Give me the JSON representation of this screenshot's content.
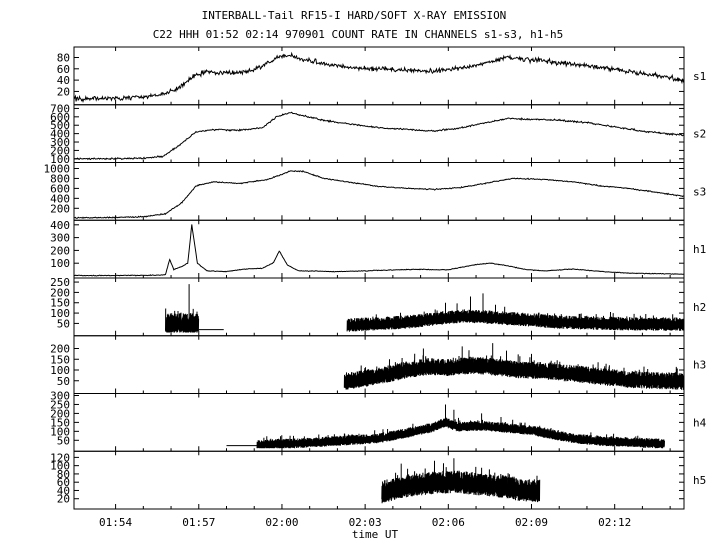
{
  "header": {
    "title": "INTERBALL-Tail RF15-I HARD/SOFT X-RAY EMISSION",
    "subtitle": "C22 HHH 01:52 02:14 970901  COUNT RATE IN CHANNELS s1-s3, h1-h5"
  },
  "chart_data": {
    "type": "line",
    "xlabel": "time UT",
    "xlim_minutes": [
      112.5,
      134.5
    ],
    "x_ticks": [
      {
        "label": "01:54",
        "min": 114
      },
      {
        "label": "01:57",
        "min": 117
      },
      {
        "label": "02:00",
        "min": 120
      },
      {
        "label": "02:03",
        "min": 123
      },
      {
        "label": "02:06",
        "min": 126
      },
      {
        "label": "02:09",
        "min": 129
      },
      {
        "label": "02:12",
        "min": 132
      }
    ],
    "panels": [
      {
        "id": "s1",
        "name": "s1",
        "ylim": [
          0,
          95
        ],
        "yticks": [
          "20",
          "40",
          "60",
          "80"
        ],
        "noise": 6,
        "points": [
          [
            112.5,
            7
          ],
          [
            114,
            8
          ],
          [
            115,
            10
          ],
          [
            115.7,
            14
          ],
          [
            116.3,
            28
          ],
          [
            116.9,
            50
          ],
          [
            117.4,
            55
          ],
          [
            118,
            52
          ],
          [
            119,
            57
          ],
          [
            119.8,
            78
          ],
          [
            120.3,
            85
          ],
          [
            120.8,
            75
          ],
          [
            121.5,
            70
          ],
          [
            122.5,
            62
          ],
          [
            123.5,
            60
          ],
          [
            124.5,
            58
          ],
          [
            125.5,
            55
          ],
          [
            126.5,
            62
          ],
          [
            127.5,
            72
          ],
          [
            128.1,
            80
          ],
          [
            128.6,
            77
          ],
          [
            129.5,
            74
          ],
          [
            130.5,
            68
          ],
          [
            131.5,
            62
          ],
          [
            132.5,
            55
          ],
          [
            133.5,
            48
          ],
          [
            134.5,
            40
          ]
        ]
      },
      {
        "id": "s2",
        "name": "s2",
        "ylim": [
          80,
          720
        ],
        "yticks": [
          "100",
          "200",
          "300",
          "400",
          "500",
          "600",
          "700"
        ],
        "noise": 14,
        "points": [
          [
            112.5,
            100
          ],
          [
            114,
            102
          ],
          [
            115,
            108
          ],
          [
            115.7,
            130
          ],
          [
            116.3,
            260
          ],
          [
            116.9,
            420
          ],
          [
            117.5,
            450
          ],
          [
            118.5,
            440
          ],
          [
            119.3,
            470
          ],
          [
            119.8,
            600
          ],
          [
            120.3,
            650
          ],
          [
            120.8,
            610
          ],
          [
            121.5,
            560
          ],
          [
            122.5,
            510
          ],
          [
            123.5,
            470
          ],
          [
            124.5,
            450
          ],
          [
            125.5,
            430
          ],
          [
            126.5,
            470
          ],
          [
            127.5,
            540
          ],
          [
            128.2,
            580
          ],
          [
            129,
            570
          ],
          [
            130,
            560
          ],
          [
            131,
            530
          ],
          [
            132,
            480
          ],
          [
            133,
            430
          ],
          [
            134.5,
            380
          ]
        ]
      },
      {
        "id": "s3",
        "name": "s3",
        "ylim": [
          0,
          1080
        ],
        "yticks": [
          "200",
          "400",
          "600",
          "800",
          "1000"
        ],
        "noise": 15,
        "points": [
          [
            112.5,
            10
          ],
          [
            114,
            15
          ],
          [
            115,
            30
          ],
          [
            115.8,
            90
          ],
          [
            116.4,
            320
          ],
          [
            116.9,
            650
          ],
          [
            117.5,
            730
          ],
          [
            118.5,
            700
          ],
          [
            119.5,
            780
          ],
          [
            120.3,
            950
          ],
          [
            120.8,
            940
          ],
          [
            121.5,
            800
          ],
          [
            122.5,
            720
          ],
          [
            123.5,
            640
          ],
          [
            124.5,
            600
          ],
          [
            125.5,
            580
          ],
          [
            126.5,
            620
          ],
          [
            127.5,
            720
          ],
          [
            128.3,
            800
          ],
          [
            129.5,
            780
          ],
          [
            130.5,
            730
          ],
          [
            131.5,
            650
          ],
          [
            132.5,
            600
          ],
          [
            133.5,
            520
          ],
          [
            134.5,
            440
          ]
        ]
      },
      {
        "id": "h1",
        "name": "h1",
        "ylim": [
          0,
          420
        ],
        "yticks": [
          "100",
          "200",
          "300",
          "400"
        ],
        "noise": 4,
        "points": [
          [
            112.5,
            3
          ],
          [
            115.5,
            6
          ],
          [
            115.8,
            10
          ],
          [
            115.95,
            130
          ],
          [
            116.1,
            50
          ],
          [
            116.4,
            75
          ],
          [
            116.6,
            100
          ],
          [
            116.75,
            400
          ],
          [
            116.95,
            100
          ],
          [
            117.3,
            40
          ],
          [
            118,
            35
          ],
          [
            118.7,
            55
          ],
          [
            119.3,
            60
          ],
          [
            119.7,
            105
          ],
          [
            119.9,
            195
          ],
          [
            120.2,
            85
          ],
          [
            120.6,
            40
          ],
          [
            122,
            35
          ],
          [
            123,
            40
          ],
          [
            124,
            48
          ],
          [
            125,
            52
          ],
          [
            126,
            48
          ],
          [
            127,
            90
          ],
          [
            127.5,
            100
          ],
          [
            128,
            85
          ],
          [
            128.8,
            50
          ],
          [
            129.5,
            40
          ],
          [
            130.5,
            55
          ],
          [
            131.5,
            35
          ],
          [
            132.5,
            22
          ],
          [
            133.5,
            18
          ],
          [
            134.5,
            15
          ]
        ]
      },
      {
        "id": "h2",
        "name": "h2",
        "ylim": [
          0,
          260
        ],
        "yticks": [
          "50",
          "100",
          "150",
          "200",
          "250"
        ],
        "lines": [
          [
            [
              117.0,
              20
            ],
            [
              117.9,
              20
            ]
          ]
        ],
        "bands": [
          {
            "x0": 115.8,
            "x1": 117.0,
            "base": 8,
            "amp": 40,
            "spikes": [
              [
                116.0,
                90
              ],
              [
                116.25,
                110
              ],
              [
                116.45,
                70
              ],
              [
                116.65,
                240
              ],
              [
                116.8,
                120
              ]
            ]
          },
          {
            "x0": 122.35,
            "x1": 134.5,
            "shape": [
              [
                122.35,
                40
              ],
              [
                124.5,
                55
              ],
              [
                125.8,
                75
              ],
              [
                126.5,
                85
              ],
              [
                127.3,
                80
              ],
              [
                128.5,
                70
              ],
              [
                130,
                55
              ],
              [
                132,
                48
              ],
              [
                134.5,
                45
              ]
            ],
            "amp": 26,
            "spikes": [
              [
                125.9,
                150
              ],
              [
                126.8,
                180
              ],
              [
                127.25,
                195
              ],
              [
                127.7,
                140
              ]
            ]
          }
        ]
      },
      {
        "id": "h3",
        "name": "h3",
        "ylim": [
          0,
          250
        ],
        "yticks": [
          "50",
          "100",
          "150",
          "200"
        ],
        "bands": [
          {
            "x0": 122.25,
            "x1": 134.5,
            "shape": [
              [
                122.25,
                45
              ],
              [
                123.5,
                70
              ],
              [
                124.5,
                100
              ],
              [
                125.3,
                115
              ],
              [
                126,
                110
              ],
              [
                126.8,
                120
              ],
              [
                127.5,
                115
              ],
              [
                128.5,
                100
              ],
              [
                129.5,
                95
              ],
              [
                131,
                75
              ],
              [
                132.5,
                55
              ],
              [
                134.5,
                45
              ]
            ],
            "amp": 32,
            "spikes": [
              [
                125.1,
                200
              ],
              [
                126.5,
                210
              ],
              [
                127.6,
                225
              ],
              [
                128.1,
                190
              ],
              [
                129,
                175
              ]
            ]
          }
        ]
      },
      {
        "id": "h4",
        "name": "h4",
        "ylim": [
          0,
          300
        ],
        "yticks": [
          "50",
          "100",
          "150",
          "200",
          "250",
          "300"
        ],
        "lines": [
          [
            [
              118.0,
              20
            ],
            [
              119.1,
              20
            ]
          ]
        ],
        "bands": [
          {
            "x0": 119.1,
            "x1": 133.8,
            "shape": [
              [
                119.1,
                25
              ],
              [
                120.5,
                32
              ],
              [
                122,
                45
              ],
              [
                123.5,
                60
              ],
              [
                124.5,
                90
              ],
              [
                125.4,
                120
              ],
              [
                125.9,
                150
              ],
              [
                126.3,
                125
              ],
              [
                127.2,
                130
              ],
              [
                128,
                120
              ],
              [
                129,
                105
              ],
              [
                129.8,
                80
              ],
              [
                130.5,
                60
              ],
              [
                131.5,
                45
              ],
              [
                133,
                35
              ],
              [
                133.8,
                30
              ]
            ],
            "amp": 22,
            "spikes": [
              [
                125.9,
                250
              ],
              [
                126.2,
                220
              ],
              [
                127.2,
                200
              ],
              [
                127.9,
                180
              ]
            ]
          }
        ]
      },
      {
        "id": "h5",
        "name": "h5",
        "ylim": [
          0,
          130
        ],
        "yticks": [
          "20",
          "40",
          "60",
          "80",
          "100",
          "120"
        ],
        "bands": [
          {
            "x0": 123.6,
            "x1": 129.3,
            "shape": [
              [
                123.6,
                35
              ],
              [
                124.5,
                50
              ],
              [
                125.5,
                58
              ],
              [
                126.3,
                60
              ],
              [
                127,
                55
              ],
              [
                128,
                48
              ],
              [
                128.6,
                40
              ],
              [
                129.3,
                38
              ]
            ],
            "amp": 22,
            "spikes": [
              [
                124.3,
                105
              ],
              [
                125.5,
                112
              ],
              [
                126.2,
                118
              ],
              [
                127.2,
                95
              ]
            ]
          }
        ]
      }
    ]
  }
}
